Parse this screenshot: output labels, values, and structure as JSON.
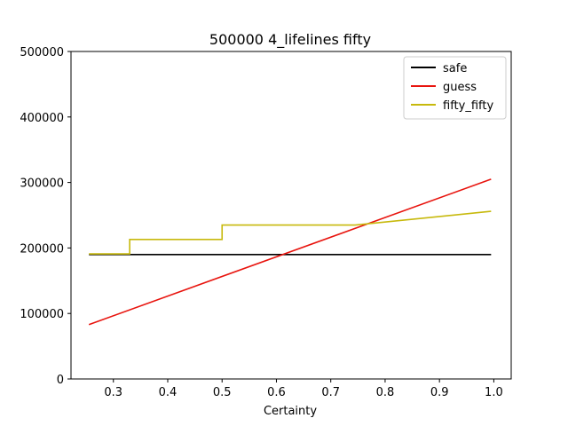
{
  "chart_data": {
    "type": "line",
    "title": "500000 4_lifelines fifty",
    "xlabel": "Certainty",
    "ylabel": "",
    "xlim": [
      0.222,
      1.032
    ],
    "ylim": [
      0,
      500000
    ],
    "xticks": [
      0.3,
      0.4,
      0.5,
      0.6,
      0.7,
      0.8,
      0.9,
      1.0
    ],
    "xtick_labels": [
      "0.3",
      "0.4",
      "0.5",
      "0.6",
      "0.7",
      "0.8",
      "0.9",
      "1.0"
    ],
    "yticks": [
      0,
      100000,
      200000,
      300000,
      400000,
      500000
    ],
    "ytick_labels": [
      "0",
      "100000",
      "200000",
      "300000",
      "400000",
      "500000"
    ],
    "grid": false,
    "legend_position": "top-right",
    "series": [
      {
        "name": "safe",
        "color": "#000000",
        "points": [
          [
            0.255,
            190000
          ],
          [
            0.995,
            190000
          ]
        ]
      },
      {
        "name": "guess",
        "color": "#e8140e",
        "points": [
          [
            0.255,
            83000
          ],
          [
            0.995,
            305000
          ]
        ]
      },
      {
        "name": "fifty_fifty",
        "color": "#c7b90c",
        "points": [
          [
            0.255,
            191000
          ],
          [
            0.33,
            191000
          ],
          [
            0.33,
            213000
          ],
          [
            0.5,
            213000
          ],
          [
            0.5,
            235000
          ],
          [
            0.745,
            235000
          ],
          [
            0.995,
            256000
          ]
        ]
      }
    ]
  }
}
